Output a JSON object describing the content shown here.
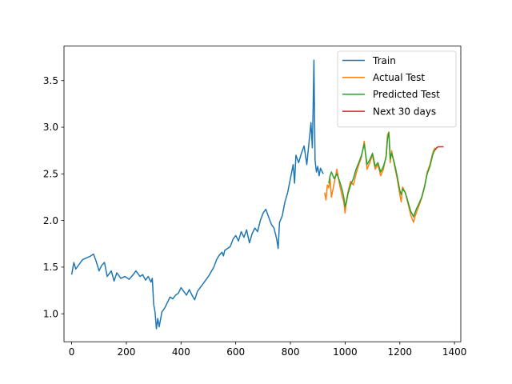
{
  "chart_data": {
    "type": "line",
    "title": "",
    "xlabel": "",
    "ylabel": "",
    "xlim": [
      -28,
      1423
    ],
    "ylim": [
      0.7,
      3.87
    ],
    "grid": false,
    "legend_placement": "top-right",
    "xticks": [
      0,
      200,
      400,
      600,
      800,
      1000,
      1200,
      1400
    ],
    "xtick_labels": [
      "0",
      "200",
      "400",
      "600",
      "800",
      "1000",
      "1200",
      "1400"
    ],
    "yticks": [
      1.0,
      1.5,
      2.0,
      2.5,
      3.0,
      3.5
    ],
    "ytick_labels": [
      "1.0",
      "1.5",
      "2.0",
      "2.5",
      "3.0",
      "3.5"
    ],
    "series": [
      {
        "name": "Train",
        "color": "#1f77b4",
        "x": [
          0,
          8,
          15,
          25,
          40,
          55,
          70,
          80,
          90,
          100,
          110,
          120,
          130,
          145,
          155,
          165,
          180,
          195,
          210,
          225,
          235,
          250,
          260,
          270,
          280,
          290,
          295,
          300,
          305,
          310,
          315,
          320,
          330,
          340,
          350,
          360,
          370,
          380,
          390,
          400,
          410,
          420,
          430,
          440,
          450,
          460,
          470,
          480,
          490,
          500,
          510,
          520,
          530,
          540,
          550,
          555,
          560,
          570,
          580,
          590,
          600,
          610,
          620,
          630,
          640,
          650,
          660,
          670,
          680,
          690,
          700,
          710,
          720,
          730,
          740,
          750,
          755,
          760,
          770,
          780,
          790,
          800,
          810,
          815,
          820,
          830,
          840,
          850,
          860,
          870,
          875,
          880,
          883,
          886,
          890,
          895,
          900,
          905,
          910,
          920
        ],
        "y": [
          1.42,
          1.55,
          1.48,
          1.52,
          1.58,
          1.6,
          1.62,
          1.64,
          1.56,
          1.46,
          1.52,
          1.55,
          1.4,
          1.46,
          1.35,
          1.44,
          1.38,
          1.4,
          1.37,
          1.42,
          1.46,
          1.4,
          1.42,
          1.36,
          1.4,
          1.34,
          1.38,
          1.1,
          1.02,
          0.84,
          0.95,
          0.86,
          1.02,
          1.06,
          1.12,
          1.18,
          1.16,
          1.2,
          1.22,
          1.28,
          1.24,
          1.2,
          1.26,
          1.2,
          1.15,
          1.24,
          1.28,
          1.32,
          1.36,
          1.4,
          1.45,
          1.5,
          1.58,
          1.63,
          1.66,
          1.62,
          1.68,
          1.7,
          1.72,
          1.8,
          1.84,
          1.78,
          1.88,
          1.82,
          1.9,
          1.76,
          1.86,
          1.92,
          1.88,
          2.0,
          2.08,
          2.12,
          2.04,
          1.96,
          1.92,
          1.8,
          1.7,
          1.98,
          2.05,
          2.2,
          2.3,
          2.45,
          2.6,
          2.4,
          2.7,
          2.62,
          2.72,
          2.8,
          2.6,
          2.9,
          3.05,
          2.78,
          3.2,
          3.72,
          2.65,
          2.52,
          2.58,
          2.48,
          2.56,
          2.5
        ]
      },
      {
        "name": "Actual Test",
        "color": "#ff7f0e",
        "x": [
          925,
          930,
          935,
          940,
          945,
          950,
          960,
          970,
          980,
          990,
          995,
          1000,
          1005,
          1010,
          1020,
          1030,
          1040,
          1050,
          1060,
          1070,
          1080,
          1090,
          1100,
          1110,
          1120,
          1130,
          1140,
          1150,
          1155,
          1160,
          1165,
          1170,
          1180,
          1190,
          1200,
          1205,
          1210,
          1220,
          1230,
          1240,
          1250,
          1255,
          1260,
          1270,
          1280,
          1290,
          1300,
          1310,
          1320,
          1325,
          1330
        ],
        "y": [
          2.3,
          2.22,
          2.38,
          2.35,
          2.45,
          2.25,
          2.4,
          2.55,
          2.38,
          2.25,
          2.2,
          2.08,
          2.22,
          2.3,
          2.42,
          2.38,
          2.5,
          2.6,
          2.68,
          2.85,
          2.55,
          2.62,
          2.7,
          2.55,
          2.6,
          2.48,
          2.55,
          2.7,
          2.92,
          2.95,
          2.62,
          2.75,
          2.6,
          2.45,
          2.28,
          2.2,
          2.36,
          2.3,
          2.18,
          2.06,
          1.98,
          2.04,
          2.08,
          2.16,
          2.24,
          2.35,
          2.52,
          2.6,
          2.72,
          2.76,
          2.78
        ]
      },
      {
        "name": "Predicted Test",
        "color": "#2ca02c",
        "x": [
          940,
          945,
          950,
          960,
          970,
          980,
          990,
          995,
          1000,
          1005,
          1010,
          1020,
          1030,
          1040,
          1050,
          1060,
          1070,
          1080,
          1090,
          1100,
          1110,
          1120,
          1130,
          1140,
          1150,
          1155,
          1160,
          1165,
          1170,
          1180,
          1190,
          1200,
          1205,
          1210,
          1220,
          1230,
          1240,
          1250,
          1255,
          1260,
          1270,
          1280,
          1290,
          1300,
          1310,
          1320,
          1325,
          1330
        ],
        "y": [
          2.4,
          2.48,
          2.52,
          2.45,
          2.5,
          2.42,
          2.32,
          2.25,
          2.15,
          2.2,
          2.28,
          2.38,
          2.45,
          2.55,
          2.62,
          2.7,
          2.82,
          2.6,
          2.65,
          2.72,
          2.58,
          2.62,
          2.52,
          2.58,
          2.68,
          2.88,
          2.94,
          2.66,
          2.72,
          2.62,
          2.48,
          2.32,
          2.28,
          2.34,
          2.3,
          2.2,
          2.1,
          2.04,
          2.08,
          2.12,
          2.18,
          2.25,
          2.36,
          2.5,
          2.58,
          2.7,
          2.74,
          2.76
        ]
      },
      {
        "name": "Next 30 days",
        "color": "#d62728",
        "x": [
          1330,
          1335,
          1340,
          1345,
          1350,
          1355,
          1360
        ],
        "y": [
          2.76,
          2.78,
          2.79,
          2.79,
          2.79,
          2.79,
          2.79
        ]
      }
    ]
  }
}
